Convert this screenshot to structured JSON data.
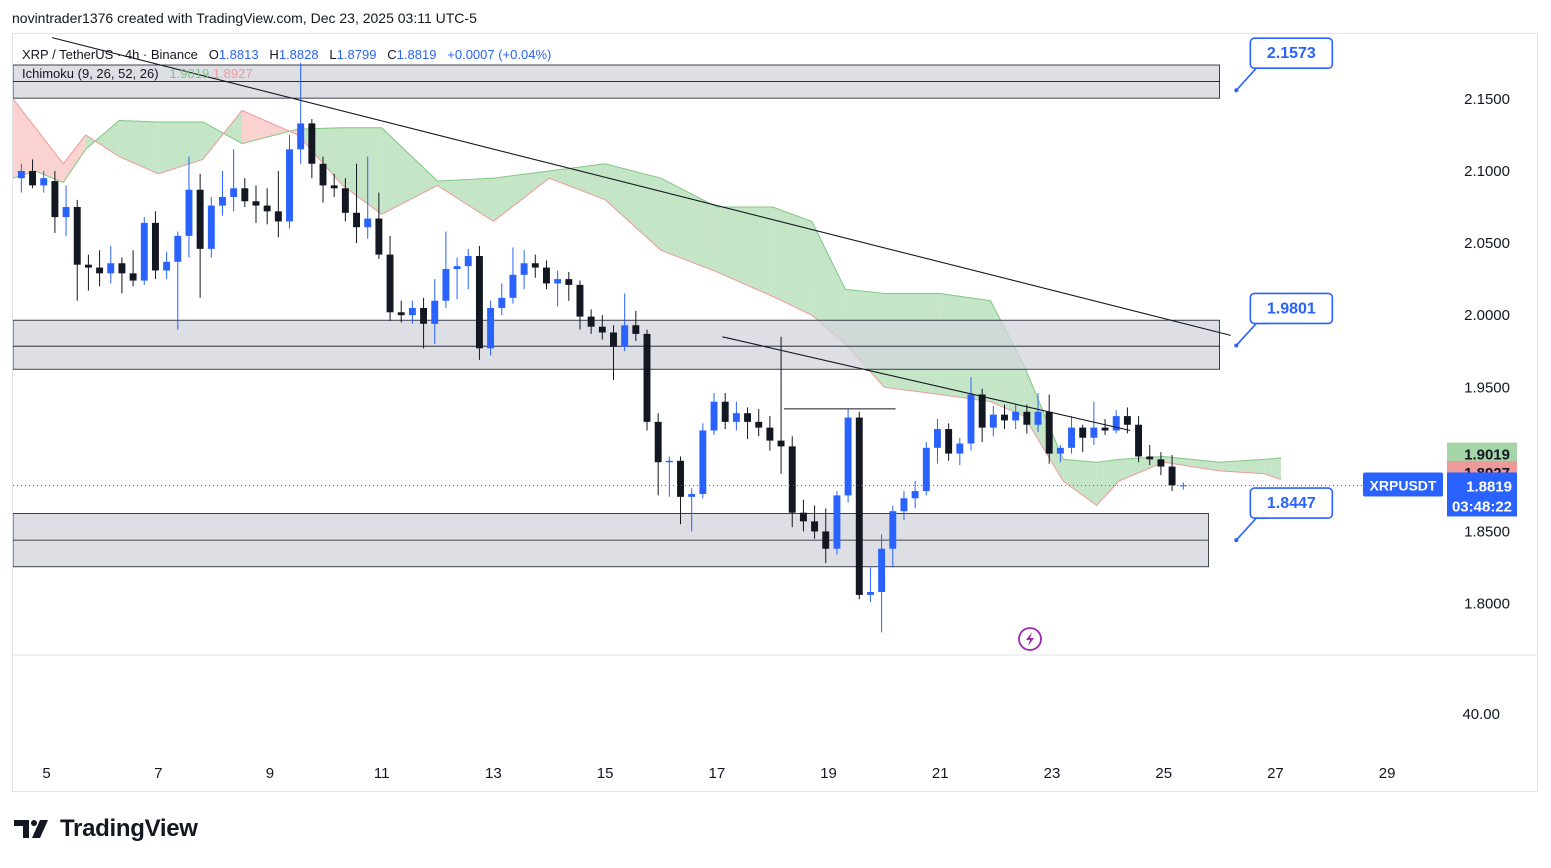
{
  "credit": "novintrader1376 created with TradingView.com, Dec 23, 2025 03:11 UTC-5",
  "legend": {
    "symbol": "XRP / TetherUS · 4h · Binance",
    "open_label": "O",
    "open": "1.8813",
    "high_label": "H",
    "high": "1.8828",
    "low_label": "L",
    "low": "1.8799",
    "close_label": "C",
    "close": "1.8819",
    "change": "+0.0007 (+0.04%)",
    "indicator": "Ichimoku (9, 26, 52, 26)",
    "ich_a": "1.9019",
    "ich_b": "1.8927"
  },
  "logo": {
    "text": "TradingView"
  },
  "colors": {
    "up": "#2962ff",
    "down": "#131722",
    "cloud_bear": "#f7b6b1",
    "cloud_bull": "#b7dfb9",
    "accent": "#2962ff",
    "zone": "#d1d4dc"
  },
  "chart_data": {
    "type": "candlestick",
    "symbol": "XRPUSDT",
    "interval": "4h",
    "ylim": [
      1.765,
      2.195
    ],
    "y_ticks": [
      "2.1500",
      "2.1000",
      "2.0500",
      "2.0000",
      "1.9500",
      "1.8500",
      "1.8000"
    ],
    "x_range_days": [
      4.4,
      30
    ],
    "x_ticks": [
      "5",
      "7",
      "9",
      "11",
      "13",
      "15",
      "17",
      "19",
      "21",
      "23",
      "25",
      "27",
      "29"
    ],
    "current_price": {
      "symbol_label": "XRPUSDT",
      "value": "1.8819",
      "countdown": "03:48:22"
    },
    "ichimoku_labels": [
      {
        "value": "1.9019",
        "color": "#81c784"
      },
      {
        "value": "1.8927",
        "color": "#ef9a9a"
      }
    ],
    "oscillator_pane": {
      "tick": "40.00"
    },
    "zones": [
      {
        "top": 2.1735,
        "mid": 2.162,
        "bottom": 2.1505,
        "end_day": 26.0
      },
      {
        "top": 1.9965,
        "mid": 1.9785,
        "bottom": 1.9625,
        "end_day": 26.0
      },
      {
        "top": 1.8625,
        "mid": 1.844,
        "bottom": 1.8255,
        "end_day": 25.8
      }
    ],
    "trendlines": [
      {
        "from": [
          5.1,
          2.1925
        ],
        "to": [
          26.2,
          1.986
        ]
      },
      {
        "from": [
          17.1,
          1.985
        ],
        "to": [
          24.4,
          1.92
        ]
      },
      {
        "from": [
          18.2,
          1.935
        ],
        "to": [
          20.2,
          1.935
        ]
      }
    ],
    "price_callouts": [
      {
        "value": "2.1573",
        "anchor": [
          26.3,
          2.156
        ]
      },
      {
        "value": "1.9801",
        "anchor": [
          26.3,
          1.979
        ]
      },
      {
        "value": "1.8447",
        "anchor": [
          26.3,
          1.844
        ]
      }
    ],
    "cloud": [
      {
        "day": 4.4,
        "a": 2.095,
        "b": 2.15
      },
      {
        "day": 4.8,
        "a": 2.1,
        "b": 2.13
      },
      {
        "day": 5.3,
        "a": 2.092,
        "b": 2.105
      },
      {
        "day": 5.7,
        "a": 2.115,
        "b": 2.125
      },
      {
        "day": 6.3,
        "a": 2.135,
        "b": 2.11
      },
      {
        "day": 7.0,
        "a": 2.134,
        "b": 2.098
      },
      {
        "day": 7.8,
        "a": 2.134,
        "b": 2.108
      },
      {
        "day": 8.5,
        "a": 2.119,
        "b": 2.142
      },
      {
        "day": 9.5,
        "a": 2.129,
        "b": 2.125
      },
      {
        "day": 10.3,
        "a": 2.13,
        "b": 2.09
      },
      {
        "day": 11.0,
        "a": 2.13,
        "b": 2.07
      },
      {
        "day": 12.0,
        "a": 2.093,
        "b": 2.09
      },
      {
        "day": 13.0,
        "a": 2.095,
        "b": 2.065
      },
      {
        "day": 14.0,
        "a": 2.1,
        "b": 2.095
      },
      {
        "day": 15.0,
        "a": 2.105,
        "b": 2.08
      },
      {
        "day": 16.0,
        "a": 2.095,
        "b": 2.045
      },
      {
        "day": 17.0,
        "a": 2.075,
        "b": 2.03
      },
      {
        "day": 18.0,
        "a": 2.075,
        "b": 2.013
      },
      {
        "day": 18.7,
        "a": 2.065,
        "b": 2.0
      },
      {
        "day": 19.3,
        "a": 2.018,
        "b": 1.98
      },
      {
        "day": 20.0,
        "a": 2.015,
        "b": 1.95
      },
      {
        "day": 21.0,
        "a": 2.015,
        "b": 1.945
      },
      {
        "day": 21.9,
        "a": 2.01,
        "b": 1.94
      },
      {
        "day": 22.5,
        "a": 1.965,
        "b": 1.93
      },
      {
        "day": 23.2,
        "a": 1.9,
        "b": 1.885
      },
      {
        "day": 23.8,
        "a": 1.898,
        "b": 1.868
      },
      {
        "day": 24.2,
        "a": 1.9,
        "b": 1.885
      },
      {
        "day": 25.0,
        "a": 1.902,
        "b": 1.898
      },
      {
        "day": 26.0,
        "a": 1.898,
        "b": 1.892
      },
      {
        "day": 26.8,
        "a": 1.9,
        "b": 1.89
      },
      {
        "day": 27.1,
        "a": 1.901,
        "b": 1.886
      }
    ],
    "candles": [
      {
        "d": 4.55,
        "o": 2.095,
        "h": 2.105,
        "l": 2.085,
        "c": 2.1
      },
      {
        "d": 4.75,
        "o": 2.1,
        "h": 2.108,
        "l": 2.088,
        "c": 2.09
      },
      {
        "d": 4.95,
        "o": 2.09,
        "h": 2.1,
        "l": 2.085,
        "c": 2.095
      },
      {
        "d": 5.15,
        "o": 2.093,
        "h": 2.1,
        "l": 2.057,
        "c": 2.068
      },
      {
        "d": 5.35,
        "o": 2.068,
        "h": 2.09,
        "l": 2.055,
        "c": 2.075
      },
      {
        "d": 5.55,
        "o": 2.075,
        "h": 2.08,
        "l": 2.01,
        "c": 2.035
      },
      {
        "d": 5.75,
        "o": 2.035,
        "h": 2.042,
        "l": 2.017,
        "c": 2.033
      },
      {
        "d": 5.95,
        "o": 2.033,
        "h": 2.045,
        "l": 2.02,
        "c": 2.029
      },
      {
        "d": 6.15,
        "o": 2.029,
        "h": 2.048,
        "l": 2.022,
        "c": 2.036
      },
      {
        "d": 6.35,
        "o": 2.036,
        "h": 2.04,
        "l": 2.015,
        "c": 2.029
      },
      {
        "d": 6.55,
        "o": 2.029,
        "h": 2.045,
        "l": 2.02,
        "c": 2.024
      },
      {
        "d": 6.75,
        "o": 2.024,
        "h": 2.068,
        "l": 2.021,
        "c": 2.064
      },
      {
        "d": 6.95,
        "o": 2.064,
        "h": 2.072,
        "l": 2.025,
        "c": 2.031
      },
      {
        "d": 7.15,
        "o": 2.031,
        "h": 2.044,
        "l": 2.025,
        "c": 2.037
      },
      {
        "d": 7.35,
        "o": 2.037,
        "h": 2.058,
        "l": 1.99,
        "c": 2.055
      },
      {
        "d": 7.55,
        "o": 2.055,
        "h": 2.11,
        "l": 2.04,
        "c": 2.087
      },
      {
        "d": 7.75,
        "o": 2.087,
        "h": 2.098,
        "l": 2.012,
        "c": 2.046
      },
      {
        "d": 7.95,
        "o": 2.046,
        "h": 2.082,
        "l": 2.04,
        "c": 2.076
      },
      {
        "d": 8.15,
        "o": 2.076,
        "h": 2.1,
        "l": 2.069,
        "c": 2.082
      },
      {
        "d": 8.35,
        "o": 2.082,
        "h": 2.115,
        "l": 2.072,
        "c": 2.088
      },
      {
        "d": 8.55,
        "o": 2.088,
        "h": 2.095,
        "l": 2.075,
        "c": 2.079
      },
      {
        "d": 8.75,
        "o": 2.079,
        "h": 2.09,
        "l": 2.064,
        "c": 2.076
      },
      {
        "d": 8.95,
        "o": 2.076,
        "h": 2.088,
        "l": 2.063,
        "c": 2.072
      },
      {
        "d": 9.15,
        "o": 2.072,
        "h": 2.1,
        "l": 2.054,
        "c": 2.065
      },
      {
        "d": 9.35,
        "o": 2.065,
        "h": 2.125,
        "l": 2.06,
        "c": 2.115
      },
      {
        "d": 9.55,
        "o": 2.115,
        "h": 2.175,
        "l": 2.105,
        "c": 2.133
      },
      {
        "d": 9.75,
        "o": 2.133,
        "h": 2.136,
        "l": 2.095,
        "c": 2.105
      },
      {
        "d": 9.95,
        "o": 2.105,
        "h": 2.11,
        "l": 2.078,
        "c": 2.09
      },
      {
        "d": 10.15,
        "o": 2.09,
        "h": 2.098,
        "l": 2.082,
        "c": 2.088
      },
      {
        "d": 10.35,
        "o": 2.088,
        "h": 2.095,
        "l": 2.065,
        "c": 2.071
      },
      {
        "d": 10.55,
        "o": 2.071,
        "h": 2.105,
        "l": 2.05,
        "c": 2.061
      },
      {
        "d": 10.75,
        "o": 2.061,
        "h": 2.11,
        "l": 2.053,
        "c": 2.067
      },
      {
        "d": 10.95,
        "o": 2.067,
        "h": 2.085,
        "l": 2.039,
        "c": 2.042
      },
      {
        "d": 11.15,
        "o": 2.042,
        "h": 2.055,
        "l": 1.996,
        "c": 2.002
      },
      {
        "d": 11.35,
        "o": 2.002,
        "h": 2.01,
        "l": 1.995,
        "c": 2.0
      },
      {
        "d": 11.55,
        "o": 2.0,
        "h": 2.01,
        "l": 1.994,
        "c": 2.005
      },
      {
        "d": 11.75,
        "o": 2.005,
        "h": 2.012,
        "l": 1.977,
        "c": 1.994
      },
      {
        "d": 11.95,
        "o": 1.994,
        "h": 2.025,
        "l": 1.98,
        "c": 2.01
      },
      {
        "d": 12.15,
        "o": 2.01,
        "h": 2.058,
        "l": 2.005,
        "c": 2.032
      },
      {
        "d": 12.35,
        "o": 2.032,
        "h": 2.04,
        "l": 2.011,
        "c": 2.034
      },
      {
        "d": 12.55,
        "o": 2.034,
        "h": 2.046,
        "l": 2.018,
        "c": 2.041
      },
      {
        "d": 12.75,
        "o": 2.041,
        "h": 2.048,
        "l": 1.969,
        "c": 1.977
      },
      {
        "d": 12.95,
        "o": 1.977,
        "h": 2.01,
        "l": 1.972,
        "c": 2.005
      },
      {
        "d": 13.15,
        "o": 2.005,
        "h": 2.022,
        "l": 2.0,
        "c": 2.012
      },
      {
        "d": 13.35,
        "o": 2.012,
        "h": 2.047,
        "l": 2.008,
        "c": 2.028
      },
      {
        "d": 13.55,
        "o": 2.028,
        "h": 2.045,
        "l": 2.018,
        "c": 2.036
      },
      {
        "d": 13.75,
        "o": 2.036,
        "h": 2.042,
        "l": 2.026,
        "c": 2.033
      },
      {
        "d": 13.95,
        "o": 2.033,
        "h": 2.038,
        "l": 2.018,
        "c": 2.022
      },
      {
        "d": 14.15,
        "o": 2.022,
        "h": 2.031,
        "l": 2.006,
        "c": 2.025
      },
      {
        "d": 14.35,
        "o": 2.025,
        "h": 2.03,
        "l": 2.01,
        "c": 2.021
      },
      {
        "d": 14.55,
        "o": 2.021,
        "h": 2.024,
        "l": 1.99,
        "c": 1.999
      },
      {
        "d": 14.75,
        "o": 1.999,
        "h": 2.004,
        "l": 1.987,
        "c": 1.992
      },
      {
        "d": 14.95,
        "o": 1.992,
        "h": 2.0,
        "l": 1.983,
        "c": 1.988
      },
      {
        "d": 15.15,
        "o": 1.988,
        "h": 1.993,
        "l": 1.955,
        "c": 1.978
      },
      {
        "d": 15.35,
        "o": 1.978,
        "h": 2.015,
        "l": 1.975,
        "c": 1.993
      },
      {
        "d": 15.55,
        "o": 1.993,
        "h": 2.003,
        "l": 1.982,
        "c": 1.987
      },
      {
        "d": 15.75,
        "o": 1.987,
        "h": 1.99,
        "l": 1.92,
        "c": 1.926
      },
      {
        "d": 15.95,
        "o": 1.926,
        "h": 1.932,
        "l": 1.875,
        "c": 1.898
      },
      {
        "d": 16.15,
        "o": 1.898,
        "h": 1.902,
        "l": 1.874,
        "c": 1.899
      },
      {
        "d": 16.35,
        "o": 1.899,
        "h": 1.902,
        "l": 1.855,
        "c": 1.874
      },
      {
        "d": 16.55,
        "o": 1.874,
        "h": 1.88,
        "l": 1.85,
        "c": 1.876
      },
      {
        "d": 16.75,
        "o": 1.876,
        "h": 1.925,
        "l": 1.873,
        "c": 1.92
      },
      {
        "d": 16.95,
        "o": 1.92,
        "h": 1.946,
        "l": 1.917,
        "c": 1.94
      },
      {
        "d": 17.15,
        "o": 1.94,
        "h": 1.946,
        "l": 1.921,
        "c": 1.926
      },
      {
        "d": 17.35,
        "o": 1.926,
        "h": 1.94,
        "l": 1.92,
        "c": 1.932
      },
      {
        "d": 17.55,
        "o": 1.932,
        "h": 1.936,
        "l": 1.914,
        "c": 1.926
      },
      {
        "d": 17.75,
        "o": 1.926,
        "h": 1.935,
        "l": 1.916,
        "c": 1.922
      },
      {
        "d": 17.95,
        "o": 1.922,
        "h": 1.93,
        "l": 1.906,
        "c": 1.913
      },
      {
        "d": 18.15,
        "o": 1.913,
        "h": 1.985,
        "l": 1.89,
        "c": 1.909
      },
      {
        "d": 18.35,
        "o": 1.909,
        "h": 1.916,
        "l": 1.853,
        "c": 1.863
      },
      {
        "d": 18.55,
        "o": 1.863,
        "h": 1.872,
        "l": 1.85,
        "c": 1.857
      },
      {
        "d": 18.75,
        "o": 1.857,
        "h": 1.868,
        "l": 1.845,
        "c": 1.85
      },
      {
        "d": 18.95,
        "o": 1.85,
        "h": 1.866,
        "l": 1.828,
        "c": 1.838
      },
      {
        "d": 19.15,
        "o": 1.838,
        "h": 1.878,
        "l": 1.834,
        "c": 1.875
      },
      {
        "d": 19.35,
        "o": 1.875,
        "h": 1.935,
        "l": 1.87,
        "c": 1.929
      },
      {
        "d": 19.55,
        "o": 1.929,
        "h": 1.933,
        "l": 1.803,
        "c": 1.806
      },
      {
        "d": 19.75,
        "o": 1.806,
        "h": 1.825,
        "l": 1.801,
        "c": 1.808
      },
      {
        "d": 19.95,
        "o": 1.808,
        "h": 1.848,
        "l": 1.78,
        "c": 1.838
      },
      {
        "d": 20.15,
        "o": 1.838,
        "h": 1.868,
        "l": 1.825,
        "c": 1.864
      },
      {
        "d": 20.35,
        "o": 1.864,
        "h": 1.878,
        "l": 1.858,
        "c": 1.873
      },
      {
        "d": 20.55,
        "o": 1.873,
        "h": 1.885,
        "l": 1.866,
        "c": 1.878
      },
      {
        "d": 20.75,
        "o": 1.878,
        "h": 1.912,
        "l": 1.875,
        "c": 1.908
      },
      {
        "d": 20.95,
        "o": 1.908,
        "h": 1.928,
        "l": 1.897,
        "c": 1.921
      },
      {
        "d": 21.15,
        "o": 1.921,
        "h": 1.925,
        "l": 1.899,
        "c": 1.904
      },
      {
        "d": 21.35,
        "o": 1.904,
        "h": 1.915,
        "l": 1.896,
        "c": 1.911
      },
      {
        "d": 21.55,
        "o": 1.911,
        "h": 1.957,
        "l": 1.906,
        "c": 1.945
      },
      {
        "d": 21.75,
        "o": 1.945,
        "h": 1.949,
        "l": 1.912,
        "c": 1.922
      },
      {
        "d": 21.95,
        "o": 1.922,
        "h": 1.937,
        "l": 1.916,
        "c": 1.931
      },
      {
        "d": 22.15,
        "o": 1.931,
        "h": 1.938,
        "l": 1.921,
        "c": 1.927
      },
      {
        "d": 22.35,
        "o": 1.927,
        "h": 1.938,
        "l": 1.921,
        "c": 1.933
      },
      {
        "d": 22.55,
        "o": 1.933,
        "h": 1.938,
        "l": 1.918,
        "c": 1.924
      },
      {
        "d": 22.75,
        "o": 1.924,
        "h": 1.946,
        "l": 1.919,
        "c": 1.933
      },
      {
        "d": 22.95,
        "o": 1.933,
        "h": 1.945,
        "l": 1.897,
        "c": 1.904
      },
      {
        "d": 23.15,
        "o": 1.904,
        "h": 1.91,
        "l": 1.898,
        "c": 1.908
      },
      {
        "d": 23.35,
        "o": 1.908,
        "h": 1.93,
        "l": 1.904,
        "c": 1.922
      },
      {
        "d": 23.55,
        "o": 1.922,
        "h": 1.924,
        "l": 1.905,
        "c": 1.915
      },
      {
        "d": 23.75,
        "o": 1.915,
        "h": 1.94,
        "l": 1.91,
        "c": 1.922
      },
      {
        "d": 23.95,
        "o": 1.922,
        "h": 1.928,
        "l": 1.917,
        "c": 1.92
      },
      {
        "d": 24.15,
        "o": 1.92,
        "h": 1.934,
        "l": 1.918,
        "c": 1.93
      },
      {
        "d": 24.35,
        "o": 1.93,
        "h": 1.936,
        "l": 1.918,
        "c": 1.924
      },
      {
        "d": 24.55,
        "o": 1.924,
        "h": 1.93,
        "l": 1.898,
        "c": 1.902
      },
      {
        "d": 24.75,
        "o": 1.902,
        "h": 1.91,
        "l": 1.896,
        "c": 1.9
      },
      {
        "d": 24.95,
        "o": 1.9,
        "h": 1.905,
        "l": 1.889,
        "c": 1.895
      },
      {
        "d": 25.15,
        "o": 1.895,
        "h": 1.903,
        "l": 1.878,
        "c": 1.882
      },
      {
        "d": 25.35,
        "o": 1.882,
        "h": 1.884,
        "l": 1.879,
        "c": 1.882
      }
    ]
  }
}
